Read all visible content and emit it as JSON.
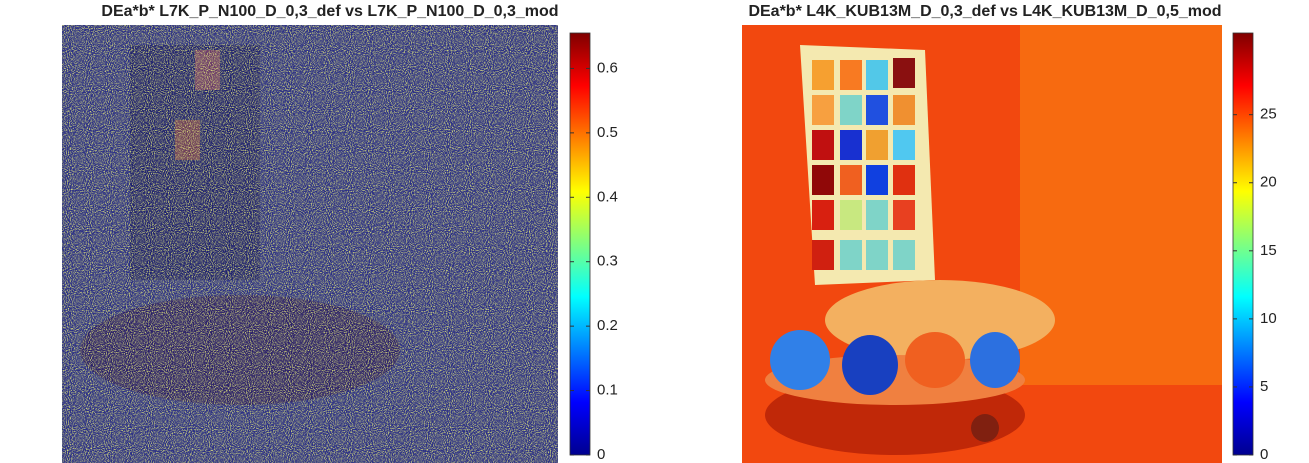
{
  "chart_data": [
    {
      "type": "heatmap",
      "title": "DEa*b* L7K_P_N100_D_0,3_def vs L7K_P_N100_D_0,3_mod",
      "colormap": "jet",
      "clim": [
        0,
        0.655
      ],
      "cticks": [
        0,
        0.1,
        0.2,
        0.3,
        0.4,
        0.5,
        0.6
      ]
    },
    {
      "type": "heatmap",
      "title": "DEa*b* L4K_KUB13M_D_0,3_def vs L4K_KUB13M_D_0,5_mod",
      "colormap": "jet",
      "clim": [
        0,
        31
      ],
      "cticks": [
        0,
        5,
        10,
        15,
        20,
        25
      ]
    }
  ]
}
